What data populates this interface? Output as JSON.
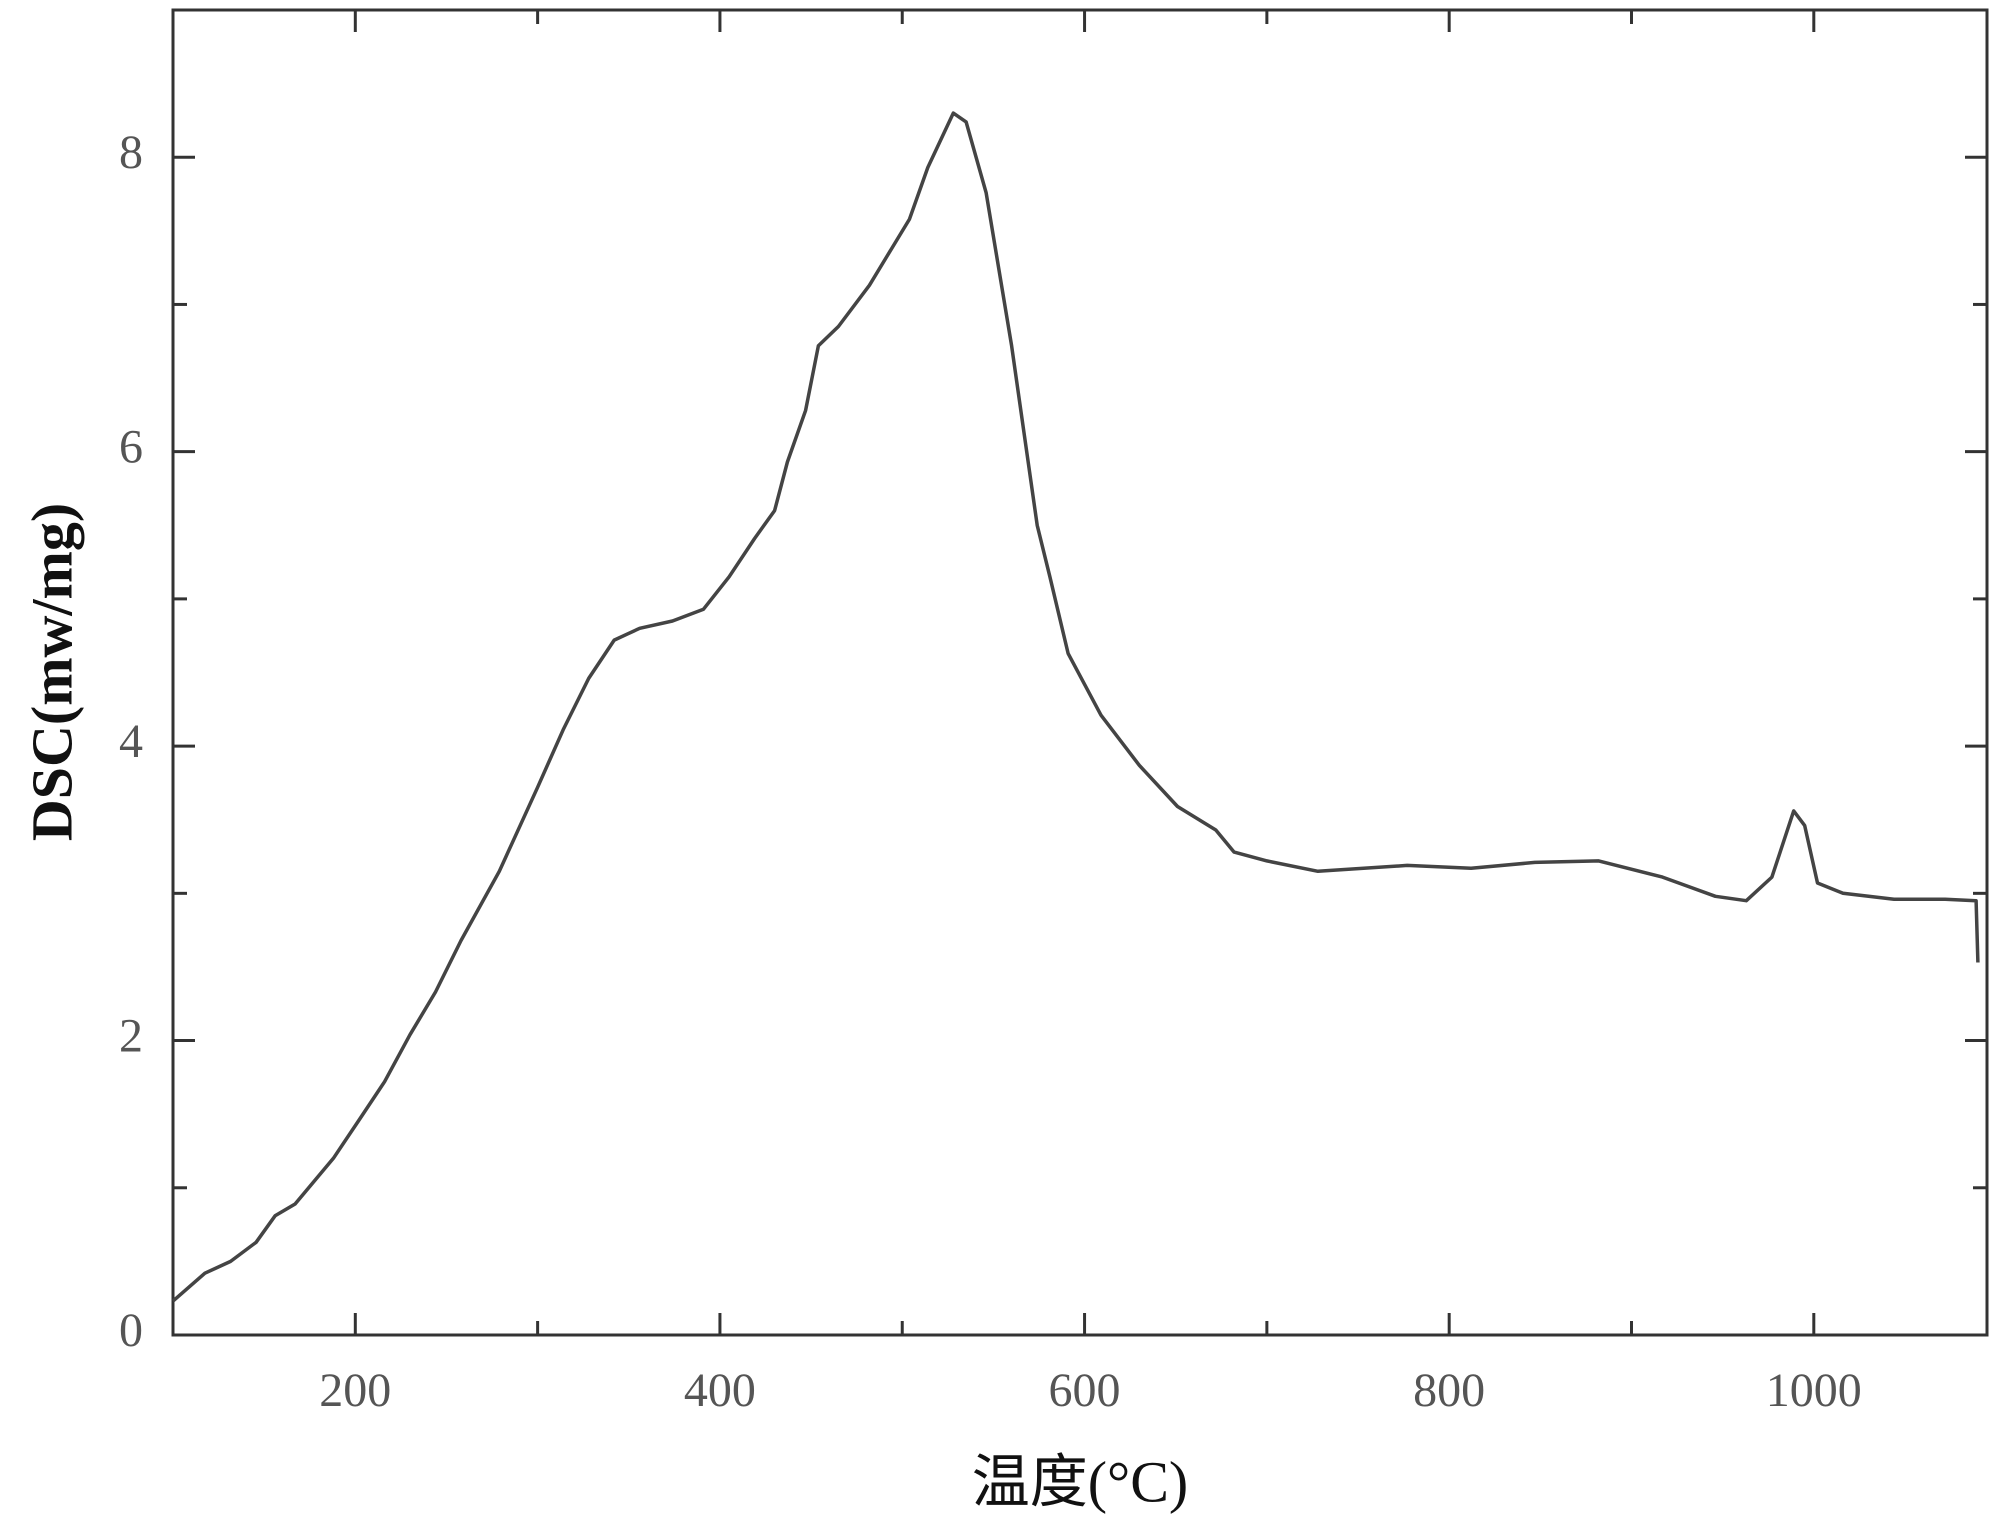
{
  "chart_data": {
    "type": "line",
    "x_label": "温度(°C)",
    "y_label": "DSC(mw/mg)",
    "x": [
      100,
      117.5,
      131.6,
      145.6,
      156,
      167,
      188,
      202,
      216,
      230,
      244,
      258,
      279,
      300,
      314,
      328,
      342,
      356,
      374,
      391,
      405,
      419,
      430,
      437,
      447,
      454,
      465,
      482,
      504,
      514,
      528,
      535,
      546,
      560,
      574,
      581,
      591,
      609,
      630,
      651,
      672,
      682,
      700,
      728,
      777,
      812,
      847,
      882,
      917,
      946,
      963,
      977,
      989,
      995,
      1002,
      1016,
      1044,
      1072,
      1089,
      1090
    ],
    "series": [
      {
        "name": "DSC",
        "color": "#444444",
        "values": [
          0.23,
          0.42,
          0.5,
          0.63,
          0.81,
          0.89,
          1.2,
          1.46,
          1.72,
          2.04,
          2.33,
          2.68,
          3.15,
          3.72,
          4.11,
          4.46,
          4.72,
          4.8,
          4.85,
          4.93,
          5.15,
          5.41,
          5.6,
          5.93,
          6.28,
          6.72,
          6.85,
          7.13,
          7.58,
          7.93,
          8.3,
          8.24,
          7.76,
          6.72,
          5.5,
          5.15,
          4.63,
          4.21,
          3.87,
          3.59,
          3.43,
          3.28,
          3.22,
          3.15,
          3.19,
          3.17,
          3.21,
          3.22,
          3.11,
          2.98,
          2.95,
          3.11,
          3.56,
          3.46,
          3.07,
          3.0,
          2.96,
          2.96,
          2.95,
          2.53
        ]
      }
    ],
    "xlim": [
      100,
      1095
    ],
    "ylim": [
      0,
      9
    ],
    "xticks": [
      200,
      400,
      600,
      800,
      1000
    ],
    "yticks": [
      0,
      2,
      4,
      6,
      8
    ],
    "xticks_minor": [
      300,
      500,
      700,
      900
    ],
    "yticks_minor": [
      1,
      3,
      5,
      7
    ],
    "grid": false
  }
}
